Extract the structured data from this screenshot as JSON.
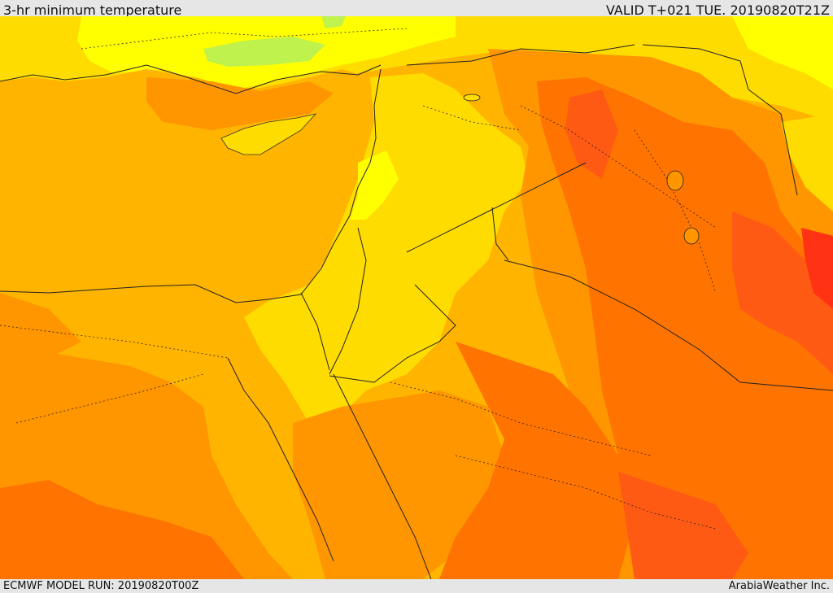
{
  "header": {
    "title": "3-hr minimum temperature",
    "valid": "VALID T+021 TUE. 20190820T21Z"
  },
  "footer": {
    "model_run": "ECMWF MODEL RUN: 20190820T00Z",
    "credit": "ArabiaWeather Inc."
  },
  "palette": {
    "light_green": "#bff24d",
    "yellow": "#ffff00",
    "yellow_orange": "#ffdc00",
    "light_orange": "#ffb400",
    "orange": "#ff9600",
    "dark_orange": "#ff7300",
    "red_orange": "#ff5a14",
    "red": "#ff3214"
  }
}
